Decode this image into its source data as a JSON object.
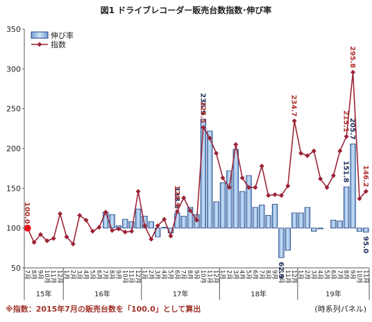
{
  "chart_data": {
    "type": "bar_line",
    "title": "図1 ドライブレコーダー販売台数指数･伸び率",
    "note": "※指数：2015年7月の販売台数を「100.0」として算出",
    "panel": "(時系列パネル)",
    "groups": [
      {
        "label": "15年",
        "categories": [
          "7月",
          "8月",
          "9月",
          "10月",
          "11月",
          "12月"
        ]
      },
      {
        "label": "16年",
        "categories": [
          "1月",
          "2月",
          "3月",
          "4月",
          "5月",
          "6月",
          "7月",
          "8月",
          "9月",
          "10月",
          "11月",
          "12月"
        ]
      },
      {
        "label": "17年",
        "categories": [
          "1月",
          "2月",
          "3月",
          "4月",
          "5月",
          "6月",
          "7月",
          "8月",
          "9月",
          "10月",
          "11月",
          "12月"
        ]
      },
      {
        "label": "18年",
        "categories": [
          "1月",
          "2月",
          "3月",
          "4月",
          "5月",
          "6月",
          "7月",
          "8月",
          "9月",
          "10月",
          "11月",
          "12月"
        ]
      },
      {
        "label": "19年",
        "categories": [
          "1月",
          "2月",
          "3月",
          "4月",
          "5月",
          "6月",
          "7月",
          "8月",
          "9月",
          "10月",
          "11月"
        ]
      }
    ],
    "ylim": [
      50,
      350
    ],
    "yticks": [
      50,
      100,
      150,
      200,
      250,
      300,
      350
    ],
    "bar_baseline": 100,
    "legend": "top-left",
    "series": [
      {
        "name": "伸び率",
        "kind": "bar",
        "color": "#9cc3ea",
        "edge": "#1f3f7a",
        "label_color": "#1f2f5a",
        "values": [
          null,
          null,
          null,
          null,
          null,
          null,
          null,
          null,
          null,
          null,
          null,
          null,
          120,
          117,
          103,
          111,
          108,
          124,
          115,
          108,
          89,
          101,
          94,
          118.8,
          115,
          126,
          117,
          236.9,
          222,
          133,
          157,
          172,
          199,
          146,
          166,
          126,
          129,
          116,
          130,
          62.9,
          72,
          119,
          119,
          126,
          96,
          99,
          100,
          110,
          109,
          151.8,
          205.7,
          96,
          95.0
        ],
        "value_labels": [
          null,
          null,
          null,
          null,
          null,
          null,
          null,
          null,
          null,
          null,
          null,
          null,
          null,
          null,
          null,
          null,
          null,
          null,
          null,
          null,
          null,
          null,
          null,
          "118.8",
          null,
          null,
          null,
          "236.9",
          null,
          null,
          null,
          null,
          null,
          null,
          null,
          null,
          null,
          null,
          null,
          "62.9",
          null,
          null,
          null,
          null,
          null,
          null,
          null,
          null,
          null,
          "151.8",
          "205.7",
          null,
          "95.0"
        ]
      },
      {
        "name": "指数",
        "kind": "line",
        "color": "#9b2335",
        "label_color": "#b0302c",
        "values": [
          100.0,
          82,
          92,
          84,
          87,
          118,
          89,
          80,
          116,
          110,
          96,
          101,
          120,
          97,
          99,
          95,
          96,
          146,
          103,
          86,
          103,
          111,
          90,
          120.9,
          138,
          122,
          110,
          226.5,
          213,
          194,
          163,
          151,
          205,
          163,
          151,
          151,
          178,
          141,
          142,
          141,
          153,
          234.7,
          194,
          191,
          197,
          162,
          151,
          166,
          197,
          215.1,
          295.8,
          137,
          146.2
        ],
        "value_labels": [
          "100.0",
          null,
          null,
          null,
          null,
          null,
          null,
          null,
          null,
          null,
          null,
          null,
          null,
          null,
          null,
          null,
          null,
          null,
          null,
          null,
          null,
          null,
          null,
          "120.9",
          null,
          null,
          null,
          "226.5",
          null,
          null,
          null,
          null,
          null,
          null,
          null,
          null,
          null,
          null,
          null,
          null,
          null,
          "234.7",
          null,
          null,
          null,
          null,
          null,
          null,
          null,
          "215.1",
          "295.8",
          null,
          "146.2"
        ]
      }
    ]
  }
}
